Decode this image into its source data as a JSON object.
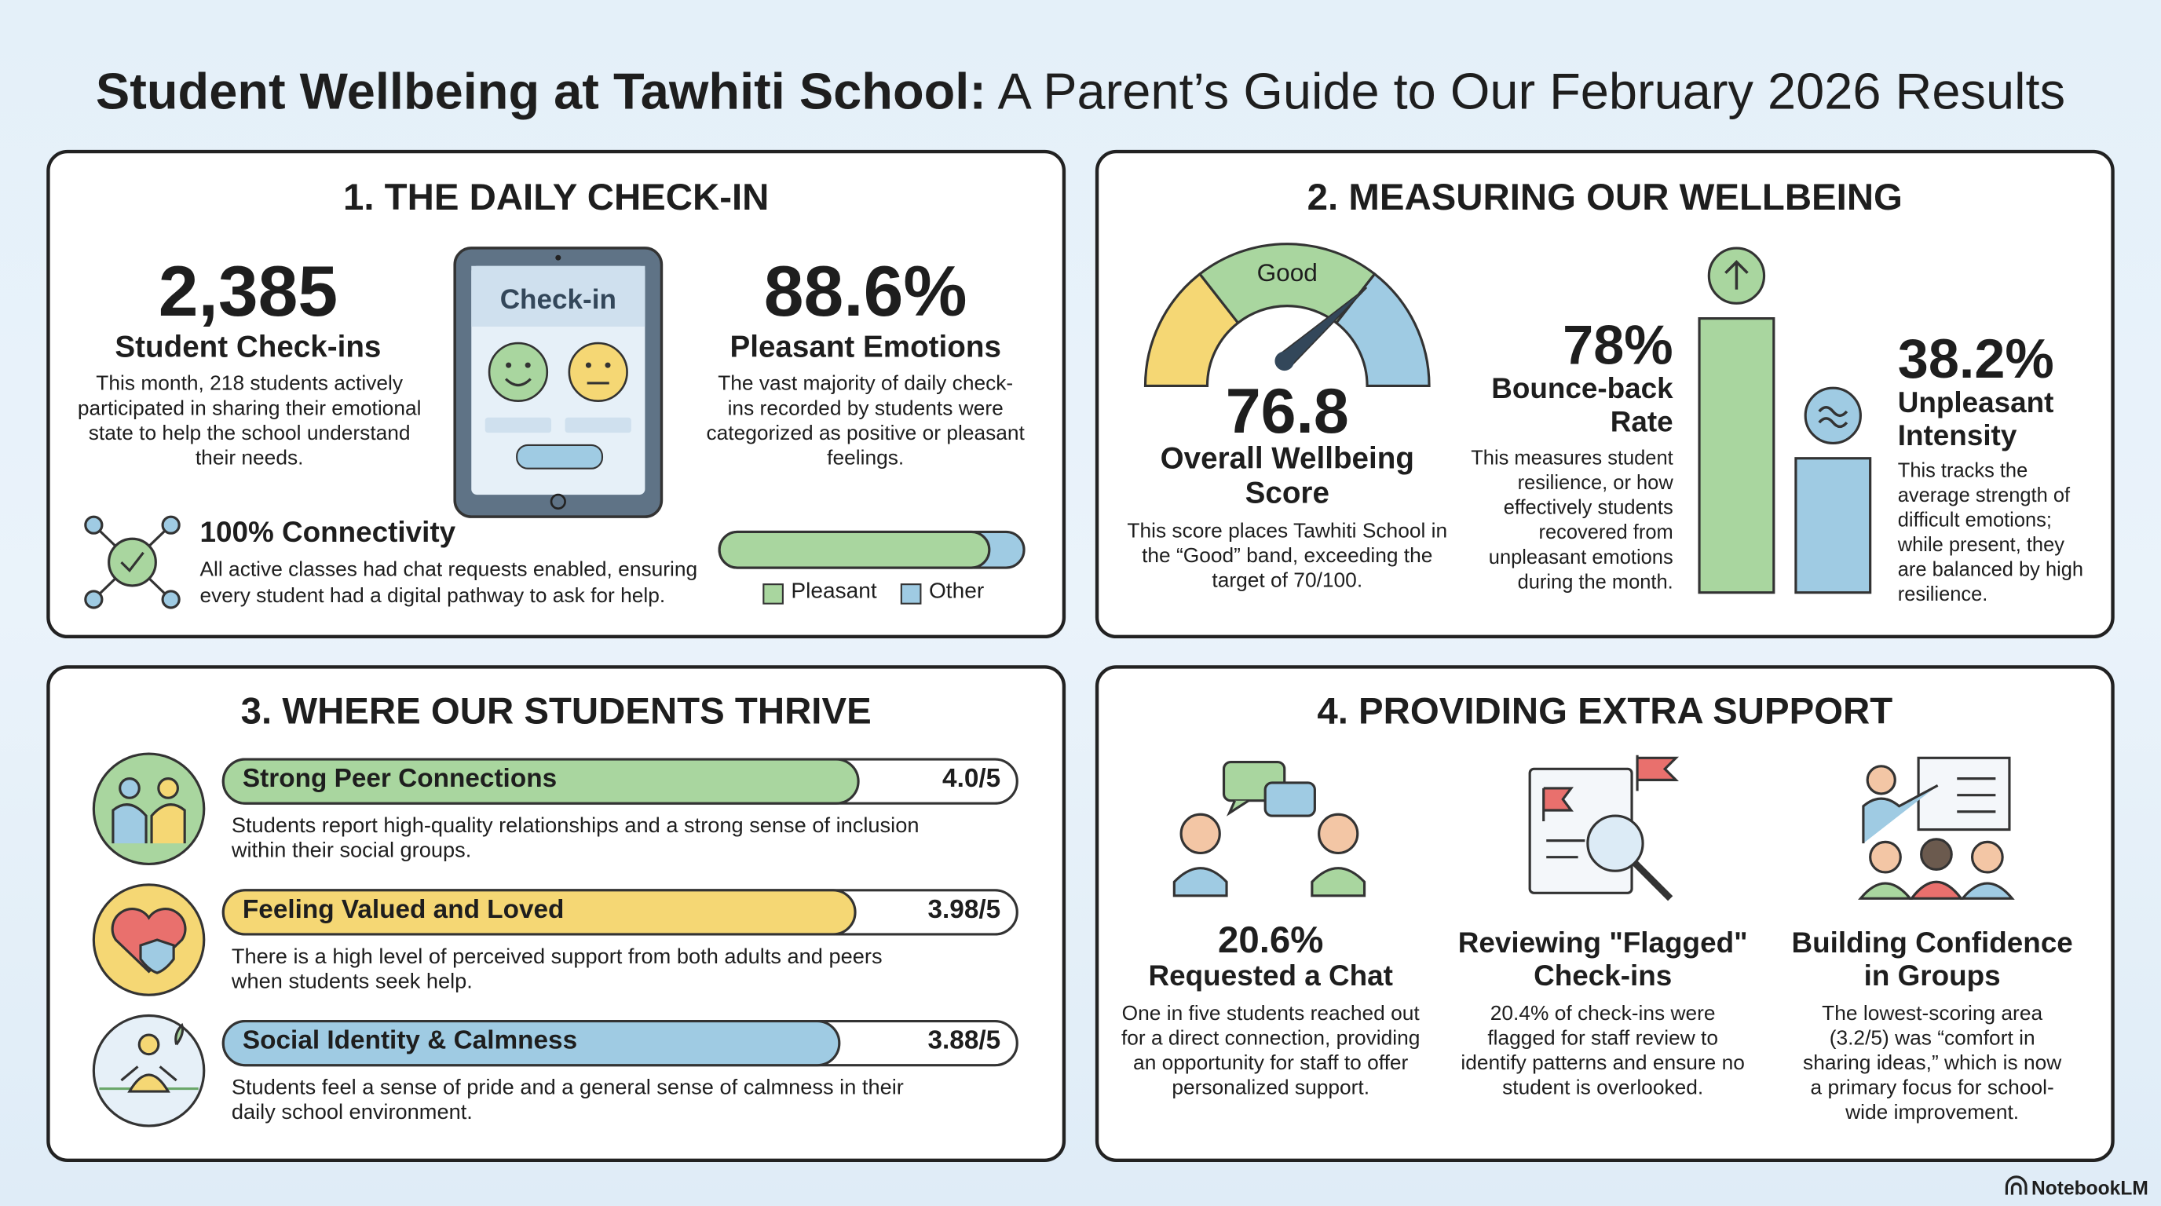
{
  "title": {
    "bold": "Student Wellbeing at Tawhiti School:",
    "rest": "A Parent’s Guide to Our February 2026 Results"
  },
  "daily_checkin": {
    "heading": "1. THE DAILY CHECK-IN",
    "checkins": {
      "value": "2,385",
      "label": "Student Check-ins",
      "text": "This month, 218 students actively participated in sharing their emotional state to help the school understand their needs."
    },
    "tablet_label": "Check-in",
    "pleasant": {
      "value": 88.6,
      "label": "88.6%",
      "title": "Pleasant Emotions",
      "text": "The vast majority of daily check-ins recorded by students were categorized as positive or pleasant feelings."
    },
    "connectivity": {
      "title": "100% Connectivity",
      "text": "All active classes had chat requests enabled, ensuring every student had a digital pathway to ask for help."
    },
    "legend": [
      "Pleasant",
      "Other"
    ]
  },
  "wellbeing": {
    "heading": "2. MEASURING OUR WELLBEING",
    "score": {
      "value": 76.8,
      "scale": [
        0,
        100
      ],
      "band": "Good",
      "title": "Overall Wellbeing Score",
      "text": "This score places Tawhiti School in the “Good” band, exceeding the target of 70/100."
    },
    "bounce_back": {
      "value": 78,
      "label": "78%",
      "title": "Bounce-back Rate",
      "text": "This measures student resilience, or how effectively students recovered from unpleasant emotions during the month."
    },
    "intensity": {
      "value": 38.2,
      "label": "38.2%",
      "title": "Unpleasant Intensity",
      "text": "This tracks the average strength of difficult emotions; while present, they are balanced by high resilience."
    }
  },
  "thrive": {
    "heading": "3. WHERE OUR STUDENTS THRIVE",
    "items": [
      {
        "name": "Strong Peer Connections",
        "score": {
          "value": 4.0,
          "max": 5,
          "label": "4.0/5"
        },
        "text": "Students report high-quality relationships and a strong sense of inclusion within their social groups."
      },
      {
        "name": "Feeling Valued and Loved",
        "score": {
          "value": 3.98,
          "max": 5,
          "label": "3.98/5"
        },
        "text": "There is a high level of perceived support from both adults and peers when students seek help."
      },
      {
        "name": "Social Identity & Calmness",
        "score": {
          "value": 3.88,
          "max": 5,
          "label": "3.88/5"
        },
        "text": "Students feel a sense of pride and a general sense of calmness in their daily school environment."
      }
    ]
  },
  "support": {
    "heading": "4. PROVIDING EXTRA SUPPORT",
    "items": [
      {
        "stat": "20.6%",
        "title": "Requested a Chat",
        "text": "One in five students reached out for a direct connection, providing an opportunity for staff to offer personalized support."
      },
      {
        "title": "Reviewing \"Flagged\" Check-ins",
        "text": "20.4% of check-ins were flagged for staff review to identify patterns and ensure no student is overlooked."
      },
      {
        "title": "Building Confidence in Groups",
        "text": "The lowest-scoring area (3.2/5) was “comfort in sharing ideas,” which is now a primary focus for school-wide improvement."
      }
    ]
  },
  "footer": "NotebookLM"
}
